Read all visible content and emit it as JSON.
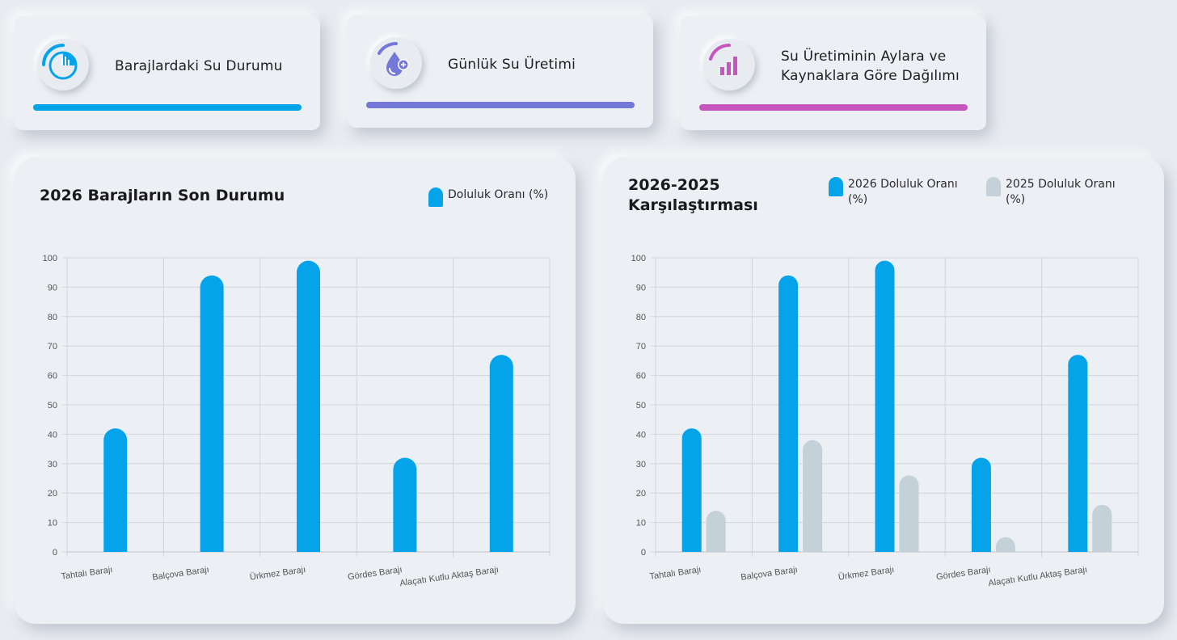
{
  "nav": [
    {
      "label": "Barajlardaki Su Durumu",
      "icon": "dam-status-icon",
      "color": "#05a4ea"
    },
    {
      "label": "Günlük Su Üretimi",
      "icon": "water-drop-icon",
      "color": "#7478d8"
    },
    {
      "label_lines": [
        "Su Üretiminin Aylara ve",
        "Kaynaklara Göre Dağılımı"
      ],
      "icon": "bar-chart-icon",
      "color": "#c655bd"
    }
  ],
  "chart_data": [
    {
      "type": "bar",
      "title": "2026 Barajların Son Durumu",
      "categories": [
        "Tahtalı Barajı",
        "Balçova Barajı",
        "Ürkmez Barajı",
        "Gördes Barajı",
        "Alaçatı Kutlu Aktaş Barajı"
      ],
      "series": [
        {
          "name": "Doluluk Oranı (%)",
          "values": [
            42,
            94,
            99,
            32,
            67
          ],
          "color": "#05a4ea"
        }
      ],
      "xlabel": "",
      "ylabel": "",
      "ylim": [
        0,
        100
      ],
      "yticks": [
        "0",
        "10",
        "20",
        "30",
        "40",
        "50",
        "60",
        "70",
        "80",
        "90",
        "100"
      ],
      "grid": true,
      "legend": "top-right"
    },
    {
      "type": "bar",
      "title_lines": [
        "2026-2025",
        "Karşılaştırması"
      ],
      "categories": [
        "Tahtalı Barajı",
        "Balçova Barajı",
        "Ürkmez Barajı",
        "Gördes Barajı",
        "Alaçatı Kutlu Aktaş Barajı"
      ],
      "series": [
        {
          "name_lines": [
            "2026 Doluluk Oranı",
            "(%)"
          ],
          "values": [
            42,
            94,
            99,
            32,
            67
          ],
          "color": "#05a4ea"
        },
        {
          "name_lines": [
            "2025 Doluluk Oranı",
            "(%)"
          ],
          "values": [
            14,
            38,
            26,
            5,
            16
          ],
          "color": "#c5d1d9"
        }
      ],
      "xlabel": "",
      "ylabel": "",
      "ylim": [
        0,
        100
      ],
      "yticks": [
        "0",
        "10",
        "20",
        "30",
        "40",
        "50",
        "60",
        "70",
        "80",
        "90",
        "100"
      ],
      "grid": true,
      "legend": "top-right"
    }
  ]
}
